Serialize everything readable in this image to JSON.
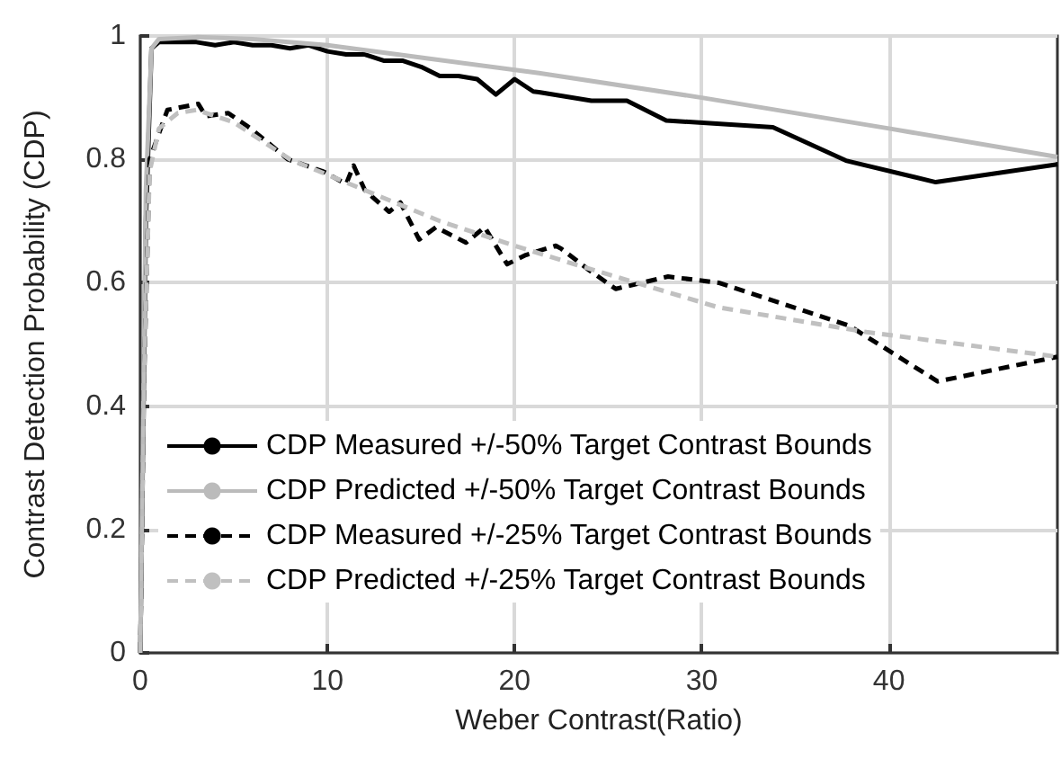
{
  "chart_data": {
    "type": "line",
    "xlabel": "Weber Contrast(Ratio)",
    "ylabel": "Contrast Detection Probability (CDP)",
    "xlim": [
      0,
      49
    ],
    "xticks": [
      0,
      10,
      20,
      30,
      40
    ],
    "ylim": [
      0,
      1
    ],
    "yticks": [
      0,
      0.2,
      0.4,
      0.6,
      0.8,
      1
    ],
    "grid": true,
    "legend": "bottom left",
    "marker": "none",
    "series": [
      {
        "name": "CDP Measured +/-50% Target Contrast Bounds",
        "color": "#000000",
        "line_style": "solid",
        "x": [
          0,
          0.3,
          0.6,
          1,
          2,
          3,
          4,
          5,
          6,
          7,
          8,
          9,
          10,
          11,
          12,
          13,
          14,
          15,
          16,
          17,
          18,
          19,
          20,
          21,
          21.3,
          24.1,
          26,
          28.1,
          33.8,
          37.7,
          42.5,
          49
        ],
        "values": [
          0,
          0.7,
          0.98,
          0.99,
          0.99,
          0.99,
          0.985,
          0.99,
          0.985,
          0.985,
          0.98,
          0.985,
          0.975,
          0.97,
          0.97,
          0.96,
          0.96,
          0.95,
          0.935,
          0.935,
          0.93,
          0.905,
          0.93,
          0.91,
          0.909,
          0.895,
          0.895,
          0.863,
          0.852,
          0.798,
          0.763,
          0.792
        ]
      },
      {
        "name": "CDP Predicted +/-50% Target Contrast Bounds",
        "color": "#bbbbbb",
        "line_style": "solid",
        "x": [
          0,
          0.3,
          0.6,
          1,
          3,
          6,
          10,
          15,
          21.3,
          30,
          40,
          49
        ],
        "values": [
          0,
          0.75,
          0.98,
          0.995,
          0.998,
          0.995,
          0.985,
          0.965,
          0.94,
          0.9,
          0.85,
          0.804
        ]
      },
      {
        "name": "CDP Measured +/-25% Target Contrast Bounds",
        "color": "#000000",
        "line_style": "dashed",
        "x": [
          0,
          0.2,
          0.5,
          1.45,
          3.1,
          3.5,
          4.7,
          5.9,
          7.9,
          9.8,
          11,
          11.4,
          12,
          13.3,
          13.9,
          14.9,
          15.8,
          17.4,
          18.4,
          19.6,
          20.6,
          22.2,
          22.5,
          24,
          25.4,
          28.2,
          30.9,
          37.9,
          42.6,
          49
        ],
        "values": [
          0,
          0.44,
          0.8,
          0.88,
          0.89,
          0.87,
          0.875,
          0.85,
          0.8,
          0.78,
          0.76,
          0.79,
          0.75,
          0.715,
          0.73,
          0.67,
          0.69,
          0.665,
          0.69,
          0.63,
          0.645,
          0.66,
          0.655,
          0.62,
          0.59,
          0.61,
          0.6,
          0.53,
          0.44,
          0.48
        ]
      },
      {
        "name": "CDP Predicted +/-25% Target Contrast Bounds",
        "color": "#c0c0c0",
        "line_style": "dashed",
        "x": [
          0,
          0.2,
          0.5,
          1,
          2,
          3,
          5,
          8,
          12,
          16,
          20,
          23.2,
          30.9,
          38.8,
          49
        ],
        "values": [
          0,
          0.45,
          0.78,
          0.85,
          0.875,
          0.88,
          0.86,
          0.8,
          0.75,
          0.7,
          0.66,
          0.63,
          0.56,
          0.52,
          0.48
        ]
      }
    ]
  }
}
